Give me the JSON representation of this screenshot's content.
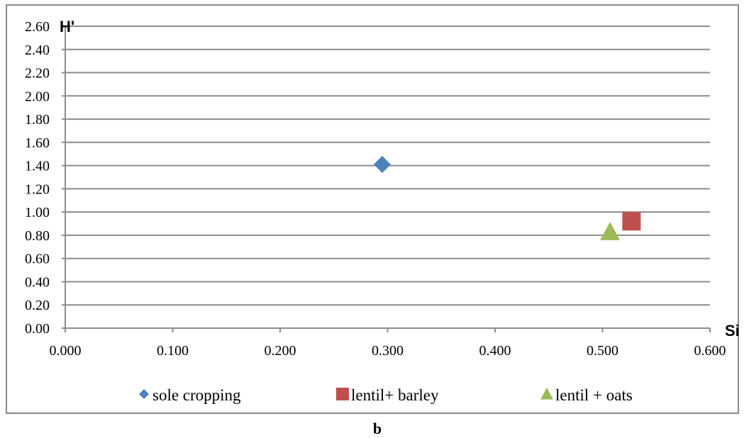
{
  "chart_data": {
    "type": "scatter",
    "x_axis": {
      "label": "Si",
      "range": [
        0,
        0.6
      ],
      "ticks": [
        "0.000",
        "0.100",
        "0.200",
        "0.300",
        "0.400",
        "0.500",
        "0.600"
      ]
    },
    "y_axis": {
      "label": "H'",
      "range": [
        0,
        2.6
      ],
      "ticks": [
        "0.00",
        "0.20",
        "0.40",
        "0.60",
        "0.80",
        "1.00",
        "1.20",
        "1.40",
        "1.60",
        "1.80",
        "2.00",
        "2.20",
        "2.40",
        "2.60"
      ]
    },
    "grid": "horizontal",
    "legend_position": "bottom",
    "series": [
      {
        "name": "sole cropping",
        "marker": "diamond",
        "color": "#4F81BD",
        "points": [
          {
            "x": 0.295,
            "y": 1.41
          }
        ]
      },
      {
        "name": "lentil+ barley",
        "marker": "square",
        "color": "#C0504D",
        "points": [
          {
            "x": 0.527,
            "y": 0.92
          }
        ]
      },
      {
        "name": "lentil + oats",
        "marker": "triangle",
        "color": "#9BBB59",
        "points": [
          {
            "x": 0.507,
            "y": 0.83
          }
        ]
      }
    ]
  },
  "caption": "b"
}
